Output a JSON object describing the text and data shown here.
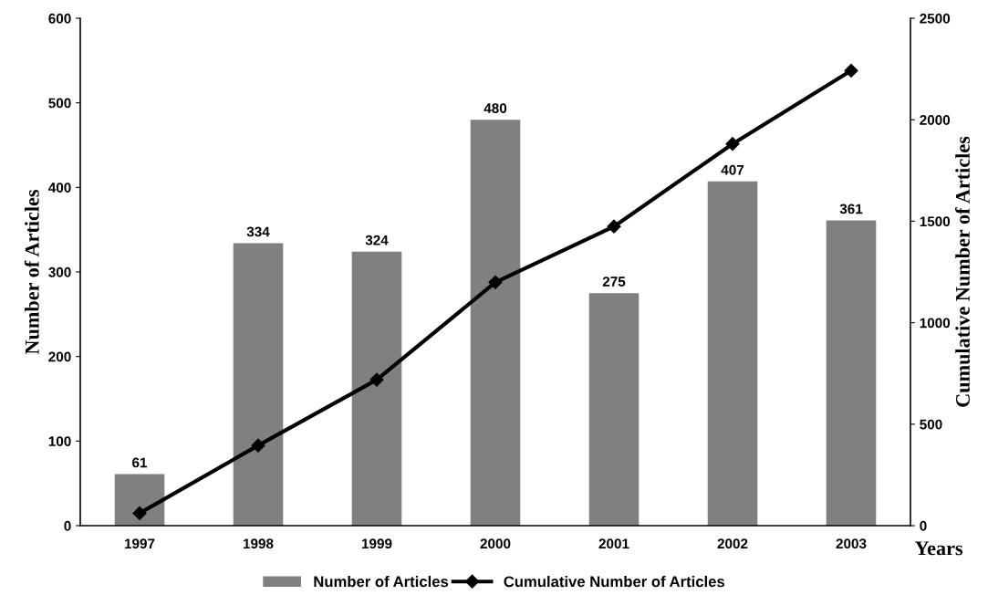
{
  "chart_data": {
    "type": "bar",
    "xlabel": "Years",
    "ylabel": "Number of Articles",
    "y2label": "Cumulative Number of Articles",
    "categories": [
      "1997",
      "1998",
      "1999",
      "2000",
      "2001",
      "2002",
      "2003"
    ],
    "series": [
      {
        "name": "Number of Articles",
        "color": "#808080",
        "values": [
          61,
          334,
          324,
          480,
          275,
          407,
          361
        ],
        "data_labels": true
      },
      {
        "name": "Cumulative Number of Articles",
        "type": "line",
        "axis": "y2",
        "color": "#000000",
        "marker": "diamond",
        "values": [
          61,
          395,
          719,
          1199,
          1474,
          1881,
          2242
        ]
      }
    ],
    "ylim": [
      0,
      600
    ],
    "yticks": [
      0,
      100,
      200,
      300,
      400,
      500,
      600
    ],
    "y2lim": [
      0,
      2500
    ],
    "y2ticks": [
      0,
      500,
      1000,
      1500,
      2000,
      2500
    ],
    "grid": false,
    "legend": "bottom"
  }
}
